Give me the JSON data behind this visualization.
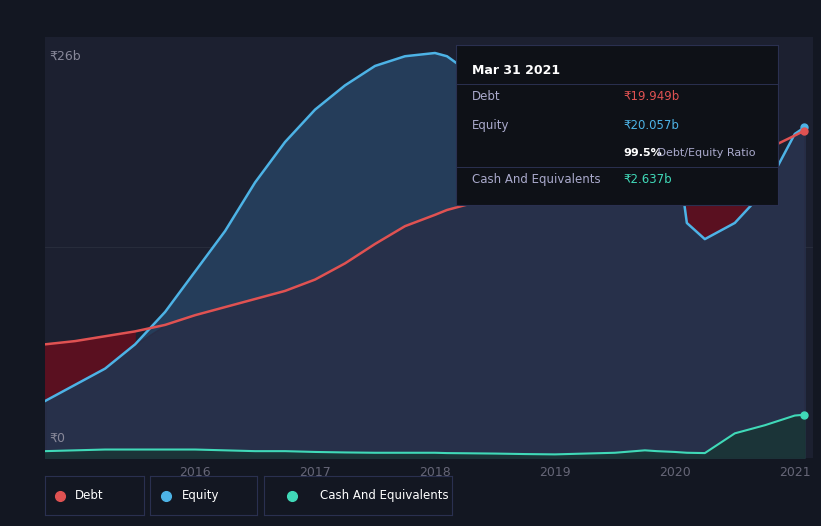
{
  "bg_color": "#131722",
  "plot_bg_color": "#1c2030",
  "debt_color": "#e05252",
  "equity_color": "#4db3e6",
  "cash_color": "#40d9b8",
  "equity_fill_color": "#253d5a",
  "debt_fill_color": "#4a1525",
  "overlap_color": "#5a1020",
  "cash_fill_color": "#1a3535",
  "ylabel_top": "₹26b",
  "ylabel_bottom": "₹0",
  "x_labels": [
    "2016",
    "2017",
    "2018",
    "2019",
    "2020",
    "2021"
  ],
  "legend_debt": "Debt",
  "legend_equity": "Equity",
  "legend_cash": "Cash And Equivalents",
  "tooltip": {
    "title": "Mar 31 2021",
    "debt_label": "Debt",
    "debt_value": "₹19.949b",
    "equity_label": "Equity",
    "equity_value": "₹20.057b",
    "ratio_pct": "99.5%",
    "ratio_text": " Debt/Equity Ratio",
    "cash_label": "Cash And Equivalents",
    "cash_value": "₹2.637b"
  },
  "x": [
    2014.75,
    2015.0,
    2015.25,
    2015.5,
    2015.75,
    2016.0,
    2016.25,
    2016.5,
    2016.75,
    2017.0,
    2017.25,
    2017.5,
    2017.75,
    2018.0,
    2018.1,
    2018.25,
    2018.5,
    2018.75,
    2019.0,
    2019.25,
    2019.5,
    2019.75,
    2019.85,
    2020.0,
    2020.1,
    2020.25,
    2020.5,
    2020.75,
    2021.0,
    2021.08
  ],
  "equity": [
    3.5,
    4.5,
    5.5,
    7.0,
    9.0,
    11.5,
    14.0,
    17.0,
    19.5,
    21.5,
    23.0,
    24.2,
    24.8,
    25.0,
    24.8,
    24.0,
    23.0,
    22.0,
    21.5,
    21.0,
    20.5,
    20.3,
    20.2,
    20.0,
    14.5,
    13.5,
    14.5,
    16.5,
    20.0,
    20.4
  ],
  "debt": [
    7.0,
    7.2,
    7.5,
    7.8,
    8.2,
    8.8,
    9.3,
    9.8,
    10.3,
    11.0,
    12.0,
    13.2,
    14.3,
    15.0,
    15.3,
    15.6,
    16.0,
    16.2,
    16.5,
    17.0,
    17.5,
    18.5,
    19.8,
    20.5,
    22.5,
    21.0,
    19.5,
    19.0,
    19.9,
    20.2
  ],
  "cash": [
    0.4,
    0.45,
    0.5,
    0.5,
    0.5,
    0.5,
    0.45,
    0.4,
    0.4,
    0.35,
    0.32,
    0.3,
    0.3,
    0.3,
    0.28,
    0.27,
    0.25,
    0.22,
    0.2,
    0.25,
    0.3,
    0.45,
    0.4,
    0.35,
    0.3,
    0.28,
    1.5,
    2.0,
    2.6,
    2.65
  ],
  "ymax": 26,
  "ymin": 0,
  "xmin": 2014.75,
  "xmax": 2021.15
}
